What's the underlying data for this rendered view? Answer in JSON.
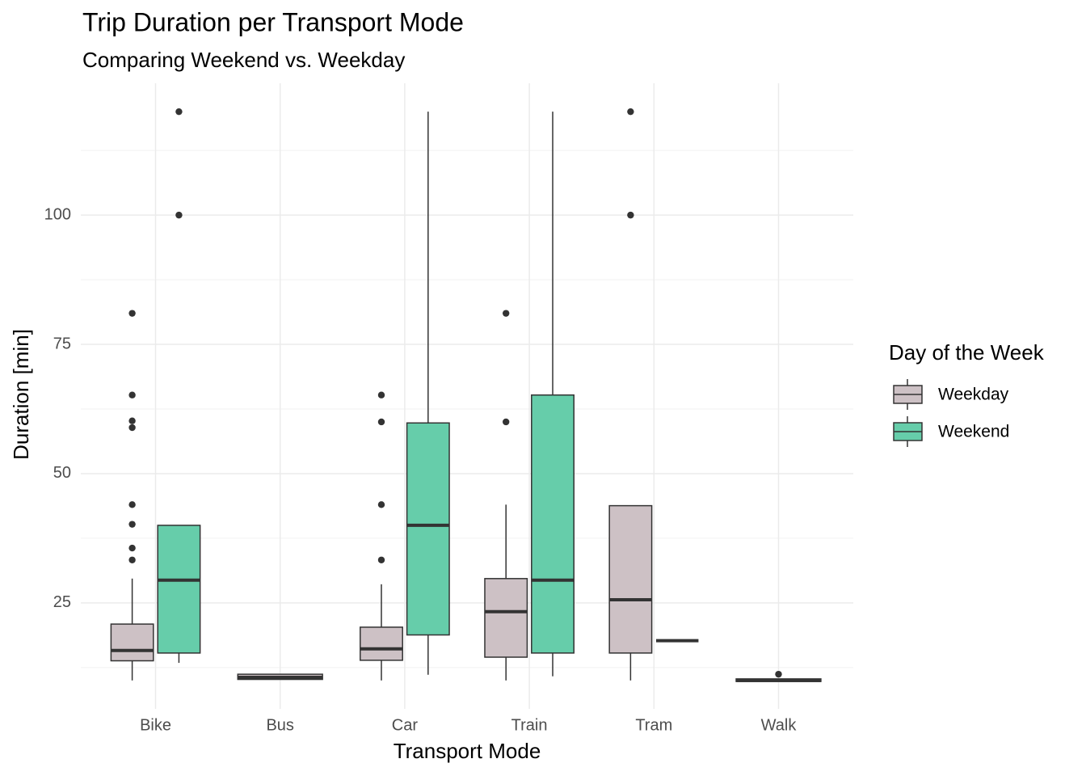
{
  "chart_data": {
    "type": "boxplot",
    "title": "Trip Duration per Transport Mode",
    "subtitle": "Comparing Weekend vs. Weekday",
    "x_label": "Transport Mode",
    "y_label": "Duration [min]",
    "legend_title": "Day of the Week",
    "legend_position": "right",
    "categories": [
      "Bike",
      "Bus",
      "Car",
      "Train",
      "Tram",
      "Walk"
    ],
    "ylim": [
      4.5,
      125.5
    ],
    "yticks": [
      25,
      50,
      75,
      100
    ],
    "grid": true,
    "minor_grid": true,
    "series": [
      {
        "name": "Weekday",
        "color": "#cdc1c5",
        "boxes": [
          {
            "min": 10,
            "q1": 13.8,
            "median": 15.8,
            "q3": 20.9,
            "max": 29.7,
            "outliers": [
              33.3,
              35.6,
              40.2,
              44,
              58.9,
              60.2,
              65.2,
              81
            ]
          },
          {
            "min": 10.2,
            "q1": 10.2,
            "median": 10.6,
            "q3": 11.2,
            "max": 11.2,
            "outliers": []
          },
          {
            "min": 10,
            "q1": 13.9,
            "median": 16.1,
            "q3": 20.3,
            "max": 28.6,
            "outliers": [
              33.3,
              44,
              60,
              65.2
            ]
          },
          {
            "min": 10,
            "q1": 14.5,
            "median": 23.3,
            "q3": 29.7,
            "max": 44,
            "outliers": [
              60,
              81
            ]
          },
          {
            "min": 10,
            "q1": 15.3,
            "median": 25.6,
            "q3": 43.8,
            "max": 43.8,
            "outliers": [
              100,
              120
            ]
          },
          {
            "min": 9.8,
            "q1": 9.8,
            "median": 10,
            "q3": 10.3,
            "max": 10.3,
            "outliers": [
              11.2
            ]
          }
        ]
      },
      {
        "name": "Weekend",
        "color": "#66cdaa",
        "boxes": [
          {
            "min": 13.4,
            "q1": 15.3,
            "median": 29.4,
            "q3": 40,
            "max": 40,
            "outliers": [
              100,
              120
            ]
          },
          null,
          {
            "min": 11.1,
            "q1": 18.8,
            "median": 40,
            "q3": 59.8,
            "max": 120,
            "outliers": []
          },
          {
            "min": 10.8,
            "q1": 15.3,
            "median": 29.4,
            "q3": 65.2,
            "max": 120,
            "outliers": []
          },
          {
            "min": 17.7,
            "q1": 17.7,
            "median": 17.7,
            "q3": 17.7,
            "max": 17.7,
            "outliers": []
          },
          null
        ]
      }
    ]
  }
}
